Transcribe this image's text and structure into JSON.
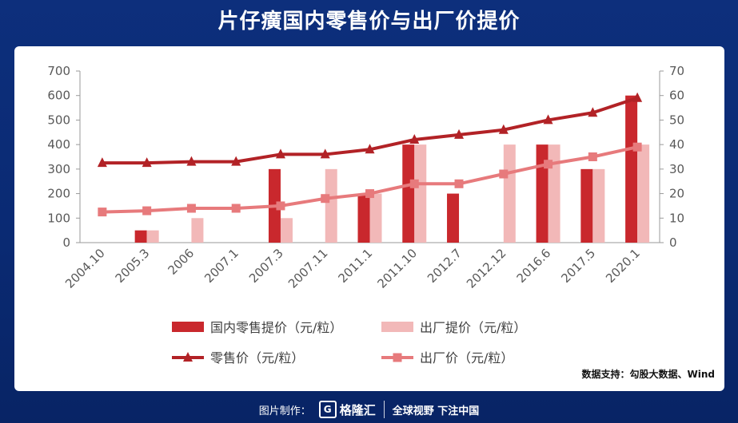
{
  "page": {
    "title": "片仔癀国内零售价与出厂价提价",
    "source": "数据支持：勾股大数据、Wind",
    "footer_label": "图片制作：",
    "footer_logo": "格隆汇",
    "footer_slogan": "全球视野 下注中国"
  },
  "chart_data": {
    "type": "bar",
    "title": "片仔癀国内零售价与出厂价提价",
    "categories": [
      "2004.10",
      "2005.3",
      "2006",
      "2007.1",
      "2007.3",
      "2007.11",
      "2011.1",
      "2011.10",
      "2012.7",
      "2012.12",
      "2016.6",
      "2017.5",
      "2020.1"
    ],
    "left_axis": {
      "ylim": [
        0,
        700
      ],
      "ticks": [
        0,
        100,
        200,
        300,
        400,
        500,
        600,
        700
      ]
    },
    "right_axis": {
      "ylim": [
        0,
        70
      ],
      "ticks": [
        0,
        10,
        20,
        30,
        40,
        50,
        60,
        70
      ]
    },
    "grid": false,
    "legend_position": "bottom",
    "series": [
      {
        "name": "国内零售提价（元/粒）",
        "type": "bar",
        "axis": "left",
        "color": "#c9282d",
        "values": [
          0,
          50,
          0,
          0,
          300,
          0,
          200,
          400,
          200,
          0,
          400,
          300,
          600
        ]
      },
      {
        "name": "出厂提价（元/粒）",
        "type": "bar",
        "axis": "left",
        "color": "#f2b8b8",
        "values": [
          0,
          50,
          100,
          0,
          100,
          300,
          200,
          400,
          0,
          400,
          400,
          300,
          400
        ]
      },
      {
        "name": "零售价（元/粒）",
        "type": "line",
        "axis": "right",
        "color": "#b22226",
        "marker": "triangle",
        "values": [
          32.5,
          32.5,
          33,
          33,
          36,
          36,
          38,
          42,
          44,
          46,
          50,
          53,
          59
        ]
      },
      {
        "name": "出厂价（元/粒）",
        "type": "line",
        "axis": "right",
        "color": "#e77a7c",
        "marker": "square",
        "values": [
          12.5,
          13,
          14,
          14,
          15,
          18,
          20,
          24,
          24,
          28,
          32,
          35,
          39
        ]
      }
    ]
  }
}
